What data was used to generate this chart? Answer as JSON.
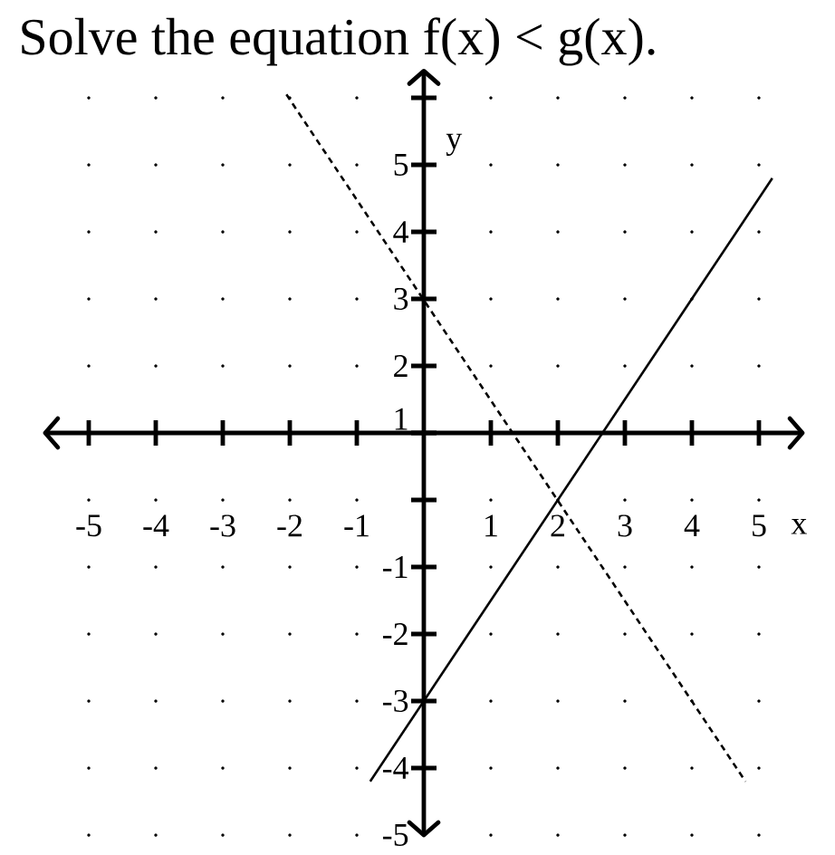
{
  "chart_data": {
    "type": "line",
    "title": "Solve the equation f(x) < g(x).",
    "xlabel": "x",
    "ylabel": "y",
    "xlim": [
      -5.65,
      5.65
    ],
    "ylim": [
      -5,
      6.4
    ],
    "xticks": [
      -5,
      -4,
      -3,
      -2,
      -1,
      1,
      2,
      3,
      4,
      5
    ],
    "yticks": [
      -5,
      -4,
      -3,
      -2,
      -1,
      {
        "value": 0,
        "label": null
      },
      1,
      2,
      3,
      4,
      5,
      {
        "value": 6,
        "label": null
      }
    ],
    "grid": true,
    "series": [
      {
        "x": [
          -0.8,
          5.2
        ],
        "values": [
          -4.2,
          4.8
        ],
        "color": "#000000",
        "line_style": "solid"
      },
      {
        "x": [
          -2.05,
          4.8
        ],
        "values": [
          6.05,
          -4.2
        ],
        "color": "#000000",
        "line_style": "dashed"
      }
    ]
  }
}
